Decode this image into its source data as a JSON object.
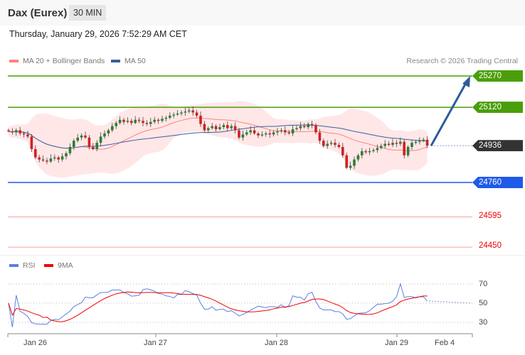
{
  "header": {
    "title": "Dax (Eurex)",
    "timeframe": "30 MIN"
  },
  "datetime": "Thursday, January 29, 2026 7:52:29 AM CET",
  "legend": {
    "ma20": "MA 20 + Bollinger Bands",
    "ma50": "MA 50",
    "rsi": "RSI",
    "rsi_ma": "9MA"
  },
  "credit": "Research © 2026 Trading Central",
  "colors": {
    "resistance": "#4a9e0a",
    "pivot": "#333333",
    "support": "#1f5ae8",
    "target": "#e00000",
    "ma20": "#ff8080",
    "ma50": "#3a5f9e",
    "up": "#2f7d32",
    "down": "#d32020"
  },
  "levels": [
    {
      "value": 25270,
      "type": "resistance",
      "label": "25270"
    },
    {
      "value": 25120,
      "type": "resistance",
      "label": "25120"
    },
    {
      "value": 24936,
      "type": "pivot",
      "label": "24936"
    },
    {
      "value": 24760,
      "type": "support",
      "label": "24760"
    },
    {
      "value": 24595,
      "type": "target",
      "label": "24595"
    },
    {
      "value": 24450,
      "type": "target",
      "label": "24450"
    }
  ],
  "rsi_levels": [
    "70",
    "50",
    "30"
  ],
  "x_labels": [
    "Jan 26",
    "Jan 27",
    "Jan 28",
    "Jan 29",
    "Feb 4"
  ],
  "chart_data": {
    "type": "candlestick",
    "ylim": [
      24450,
      25270
    ],
    "closes": [
      25005,
      25000,
      25010,
      24995,
      24990,
      24980,
      24920,
      24880,
      24870,
      24865,
      24860,
      24875,
      24880,
      24870,
      24885,
      24900,
      24930,
      24960,
      24975,
      24985,
      24975,
      24930,
      24920,
      24950,
      24980,
      24995,
      25010,
      25030,
      25045,
      25060,
      25050,
      25055,
      25045,
      25060,
      25055,
      25045,
      25040,
      25050,
      25060,
      25055,
      25065,
      25070,
      25080,
      25085,
      25090,
      25095,
      25100,
      25105,
      25095,
      25080,
      25040,
      25010,
      25020,
      25030,
      25015,
      25025,
      25035,
      25020,
      25030,
      25010,
      24975,
      24990,
      25000,
      25010,
      24995,
      24985,
      24990,
      24995,
      24990,
      25000,
      25005,
      25010,
      25000,
      24995,
      25015,
      25020,
      25030,
      25025,
      25040,
      25035,
      25000,
      24960,
      24935,
      24945,
      24950,
      24940,
      24930,
      24890,
      24830,
      24840,
      24870,
      24890,
      24910,
      24905,
      24910,
      24915,
      24925,
      24935,
      24945,
      24940,
      24950,
      24945,
      24955,
      24890,
      24930,
      24950,
      24955,
      24960,
      24965,
      24936
    ],
    "forecast": {
      "from": 24936,
      "to": 25270,
      "direction": "up"
    }
  }
}
